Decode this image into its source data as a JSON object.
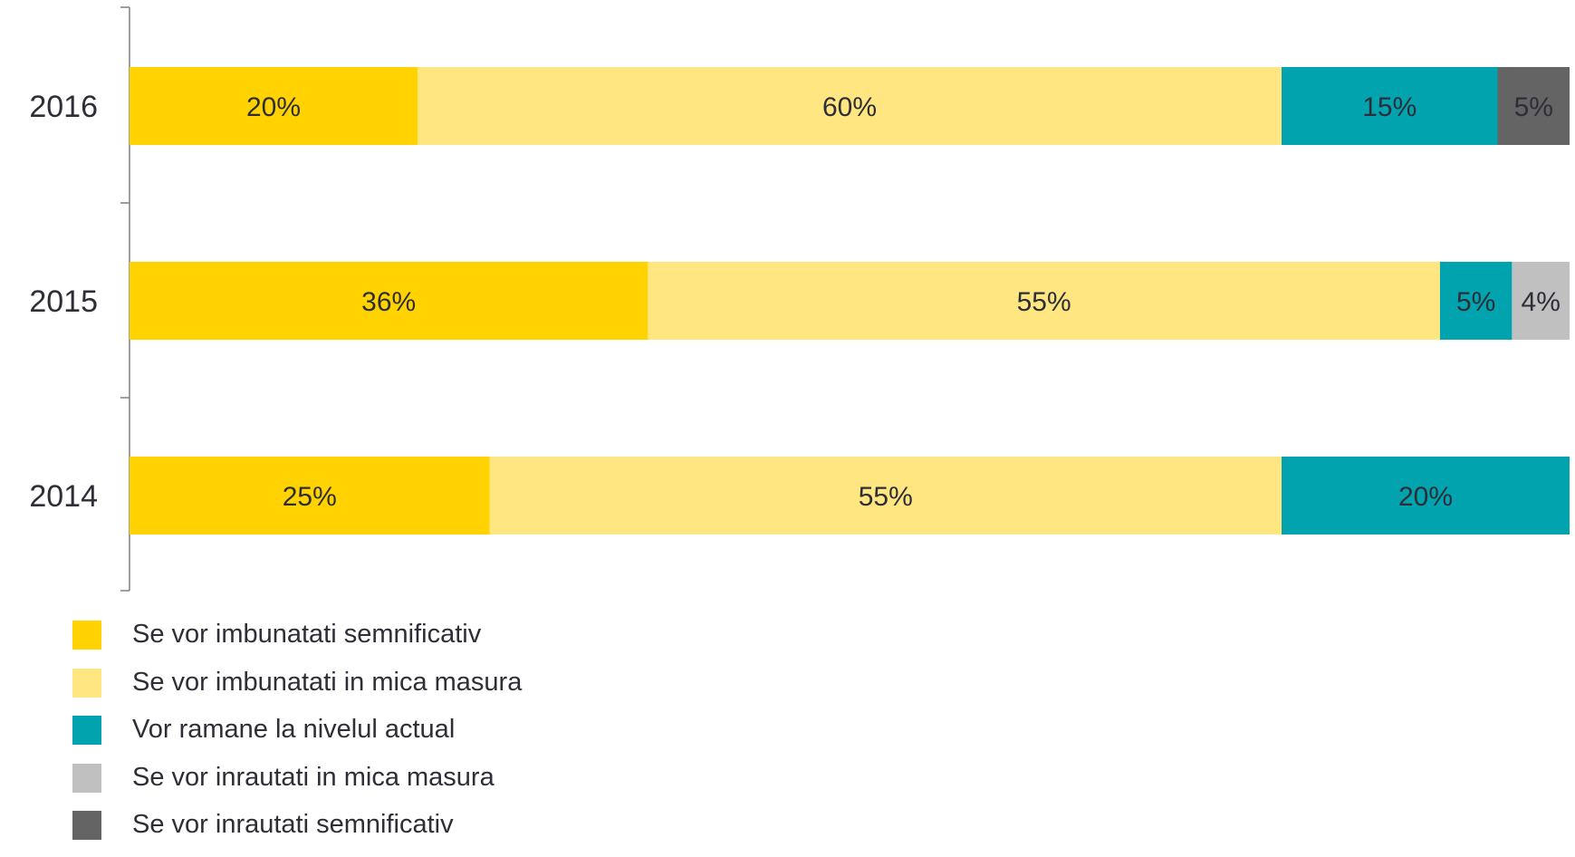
{
  "chart_data": {
    "type": "bar",
    "orientation": "horizontal",
    "stacked": true,
    "categories": [
      "2016",
      "2015",
      "2014"
    ],
    "series": [
      {
        "name": "Se vor imbunatati semnificativ",
        "color": "#FFD200",
        "values": [
          20,
          36,
          25
        ],
        "labels": [
          "20%",
          "36%",
          "25%"
        ]
      },
      {
        "name": "Se vor imbunatati in mica masura",
        "color": "#FFE680",
        "values": [
          60,
          55,
          55
        ],
        "labels": [
          "60%",
          "55%",
          "55%"
        ]
      },
      {
        "name": "Vor ramane la nivelul actual",
        "color": "#00A3AE",
        "values": [
          15,
          5,
          20
        ],
        "labels": [
          "15%",
          "5%",
          "20%"
        ]
      },
      {
        "name": "Se vor inrautati in mica masura",
        "color": "#C0C0C0",
        "values": [
          0,
          4,
          0
        ],
        "labels": [
          "",
          "4%",
          ""
        ]
      },
      {
        "name": "Se vor inrautati semnificativ",
        "color": "#646464",
        "values": [
          5,
          0,
          0
        ],
        "labels": [
          "5%",
          "",
          ""
        ]
      }
    ],
    "xlim": [
      0,
      100
    ],
    "grid": false,
    "legend_position": "bottom-left"
  }
}
